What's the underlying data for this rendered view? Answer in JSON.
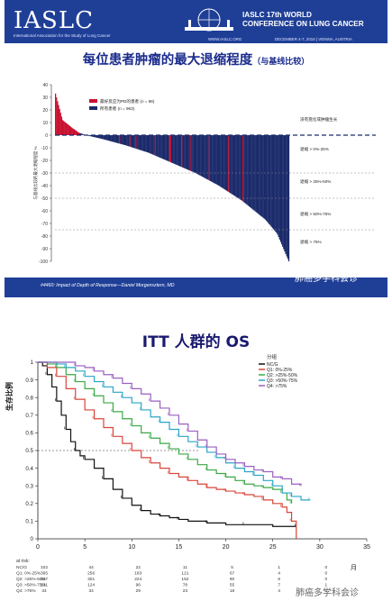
{
  "slide1": {
    "logo": "IASLC",
    "logo_sub": "International Association for the Study of Lung Cancer",
    "conf_line1": "IASLC 17th WORLD",
    "conf_line2": "CONFERENCE ON LUNG CANCER",
    "conf_url": "WWW.IASLC.ORG",
    "conf_dates": "DECEMBER 4-7, 2016 | VIENNA, AUSTRIA",
    "title": "每位患者肿瘤的最大退缩程度",
    "title_suffix": "（与基线比较）",
    "footer": "#4460: Impact of Depth of Response—Daniel Morgensztern, MD",
    "watermark": "肺癌多学科会诊"
  },
  "slide2": {
    "title": "ITT 人群的 OS",
    "watermark": "肺癌多学科会诊"
  },
  "chart_data": [
    {
      "type": "bar",
      "title": "每位患者肿瘤的最大退缩程度（与基线比较）",
      "ylabel": "与基线比较的最大退缩程度 %",
      "ylim": [
        -100,
        40
      ],
      "yticks": [
        40,
        30,
        20,
        10,
        0,
        -10,
        -20,
        -30,
        -40,
        -50,
        -60,
        -70,
        -80,
        -90,
        -100
      ],
      "legend_position": "top-center",
      "series": [
        {
          "name": "最好反应为PD的患者 (n = 96)",
          "color": "#c8102e"
        },
        {
          "name": "所有患者 (n = 963)",
          "color": "#1b2a6b"
        }
      ],
      "shape_points": [
        [
          0,
          33
        ],
        [
          0.03,
          12
        ],
        [
          0.07,
          6
        ],
        [
          0.1,
          2
        ],
        [
          0.13,
          0
        ],
        [
          0.2,
          -3
        ],
        [
          0.3,
          -8
        ],
        [
          0.4,
          -14
        ],
        [
          0.5,
          -22
        ],
        [
          0.6,
          -30
        ],
        [
          0.7,
          -40
        ],
        [
          0.8,
          -52
        ],
        [
          0.9,
          -67
        ],
        [
          0.95,
          -78
        ],
        [
          1,
          -100
        ]
      ],
      "reference_lines": [
        {
          "y": 0,
          "label": "没有变化或肿瘤生长"
        },
        {
          "y": -30,
          "label": "退缩 > 25%-50%"
        },
        {
          "y": -50,
          "label": "退缩 > 50%-75%"
        },
        {
          "y": -75,
          "label": "退缩 > 75%"
        }
      ],
      "zone_labels": [
        "没有变化或肿瘤生长",
        "退缩 > 0%-25%",
        "退缩 > 25%-50%",
        "退缩 > 50%-75%",
        "退缩 > 75%"
      ]
    },
    {
      "type": "line",
      "title": "ITT 人群的 OS",
      "xlabel": "月",
      "ylabel": "生存比例",
      "xlim": [
        0,
        35
      ],
      "ylim": [
        0,
        1
      ],
      "xticks": [
        0,
        5,
        10,
        15,
        20,
        25,
        30,
        35
      ],
      "yticks": [
        0,
        0.1,
        0.2,
        0.3,
        0.4,
        0.5,
        0.6,
        0.7,
        0.8,
        0.9,
        1.0
      ],
      "reference_line": {
        "y": 0.5,
        "style": "dashed"
      },
      "legend_title": "分组",
      "legend_position": "top-right",
      "series": [
        {
          "name": "NC/G",
          "color": "#111111",
          "points": [
            [
              0,
              1
            ],
            [
              0.5,
              0.98
            ],
            [
              1,
              0.93
            ],
            [
              1.5,
              0.86
            ],
            [
              2,
              0.78
            ],
            [
              2.5,
              0.7
            ],
            [
              3,
              0.62
            ],
            [
              3.5,
              0.55
            ],
            [
              4,
              0.5
            ],
            [
              4.5,
              0.47
            ],
            [
              5,
              0.45
            ],
            [
              6,
              0.4
            ],
            [
              7,
              0.34
            ],
            [
              8,
              0.28
            ],
            [
              9,
              0.23
            ],
            [
              10,
              0.19
            ],
            [
              11,
              0.16
            ],
            [
              12,
              0.14
            ],
            [
              13,
              0.13
            ],
            [
              14,
              0.12
            ],
            [
              15,
              0.11
            ],
            [
              16,
              0.1
            ],
            [
              18,
              0.09
            ],
            [
              20,
              0.08
            ],
            [
              22,
              0.08
            ],
            [
              25,
              0.07
            ],
            [
              27.5,
              0.07
            ]
          ]
        },
        {
          "name": "Q1: 0%-25%",
          "color": "#d9453a",
          "points": [
            [
              0,
              1
            ],
            [
              1,
              0.97
            ],
            [
              2,
              0.92
            ],
            [
              3,
              0.85
            ],
            [
              4,
              0.79
            ],
            [
              5,
              0.73
            ],
            [
              6,
              0.68
            ],
            [
              7,
              0.63
            ],
            [
              8,
              0.58
            ],
            [
              9,
              0.54
            ],
            [
              10,
              0.5
            ],
            [
              11,
              0.46
            ],
            [
              12,
              0.43
            ],
            [
              13,
              0.4
            ],
            [
              14,
              0.37
            ],
            [
              15,
              0.35
            ],
            [
              16,
              0.33
            ],
            [
              17,
              0.31
            ],
            [
              18,
              0.29
            ],
            [
              19,
              0.28
            ],
            [
              20,
              0.27
            ],
            [
              21,
              0.26
            ],
            [
              22,
              0.25
            ],
            [
              23,
              0.24
            ],
            [
              24,
              0.22
            ],
            [
              25,
              0.2
            ],
            [
              26,
              0.18
            ],
            [
              26.5,
              0.15
            ],
            [
              27,
              0.1
            ],
            [
              27.5,
              0
            ]
          ]
        },
        {
          "name": "Q2: >25%-50%",
          "color": "#3aa845",
          "points": [
            [
              0,
              1
            ],
            [
              1,
              0.99
            ],
            [
              2,
              0.97
            ],
            [
              3,
              0.93
            ],
            [
              4,
              0.89
            ],
            [
              5,
              0.85
            ],
            [
              6,
              0.81
            ],
            [
              7,
              0.77
            ],
            [
              8,
              0.72
            ],
            [
              9,
              0.68
            ],
            [
              10,
              0.64
            ],
            [
              11,
              0.6
            ],
            [
              12,
              0.57
            ],
            [
              13,
              0.54
            ],
            [
              14,
              0.51
            ],
            [
              15,
              0.48
            ],
            [
              16,
              0.45
            ],
            [
              17,
              0.42
            ],
            [
              18,
              0.39
            ],
            [
              19,
              0.37
            ],
            [
              20,
              0.35
            ],
            [
              21,
              0.33
            ],
            [
              22,
              0.31
            ],
            [
              23,
              0.3
            ],
            [
              24,
              0.29
            ],
            [
              25,
              0.28
            ],
            [
              26,
              0.26
            ],
            [
              26.5,
              0.22
            ],
            [
              27,
              0.2
            ]
          ]
        },
        {
          "name": "Q3: >50%-75%",
          "color": "#2aa5c8",
          "points": [
            [
              0,
              1
            ],
            [
              2,
              0.99
            ],
            [
              3,
              0.97
            ],
            [
              4,
              0.95
            ],
            [
              5,
              0.92
            ],
            [
              6,
              0.89
            ],
            [
              7,
              0.86
            ],
            [
              8,
              0.83
            ],
            [
              9,
              0.8
            ],
            [
              10,
              0.77
            ],
            [
              11,
              0.73
            ],
            [
              12,
              0.69
            ],
            [
              13,
              0.66
            ],
            [
              14,
              0.62
            ],
            [
              15,
              0.58
            ],
            [
              16,
              0.55
            ],
            [
              17,
              0.52
            ],
            [
              18,
              0.49
            ],
            [
              19,
              0.46
            ],
            [
              20,
              0.43
            ],
            [
              21,
              0.4
            ],
            [
              22,
              0.38
            ],
            [
              23,
              0.36
            ],
            [
              24,
              0.33
            ],
            [
              25,
              0.3
            ],
            [
              26,
              0.26
            ],
            [
              27,
              0.24
            ],
            [
              28,
              0.22
            ],
            [
              29,
              0.22
            ]
          ]
        },
        {
          "name": "Q4: >75%",
          "color": "#9b5fc0",
          "points": [
            [
              0,
              1
            ],
            [
              3,
              1
            ],
            [
              4,
              0.98
            ],
            [
              5,
              0.97
            ],
            [
              6,
              0.95
            ],
            [
              7,
              0.93
            ],
            [
              8,
              0.91
            ],
            [
              9,
              0.88
            ],
            [
              10,
              0.85
            ],
            [
              11,
              0.82
            ],
            [
              12,
              0.78
            ],
            [
              13,
              0.74
            ],
            [
              14,
              0.7
            ],
            [
              15,
              0.65
            ],
            [
              16,
              0.61
            ],
            [
              17,
              0.56
            ],
            [
              18,
              0.52
            ],
            [
              19,
              0.48
            ],
            [
              20,
              0.45
            ],
            [
              21,
              0.43
            ],
            [
              22,
              0.41
            ],
            [
              23,
              0.39
            ],
            [
              24,
              0.38
            ],
            [
              25,
              0.35
            ],
            [
              26,
              0.34
            ],
            [
              27,
              0.31
            ],
            [
              28,
              0.3
            ]
          ]
        }
      ],
      "risk_table": {
        "header": "at risk:",
        "rows": [
          {
            "label": "NC/G",
            "values": [
              "102",
              "44",
              "22",
              "11",
              "5",
              "1",
              "0"
            ]
          },
          {
            "label": "Q1: 0%-25%",
            "values": [
              "365",
              "256",
              "183",
              "121",
              "67",
              "4",
              "0"
            ]
          },
          {
            "label": "Q2: >25%-50%",
            "values": [
              "327",
              "301",
              "224",
              "152",
              "90",
              "6",
              "0"
            ]
          },
          {
            "label": "Q3: >50%-75%",
            "values": [
              "131",
              "124",
              "96",
              "78",
              "55",
              "7",
              "1"
            ]
          },
          {
            "label": "Q4: >75%",
            "values": [
              "34",
              "34",
              "29",
              "23",
              "18",
              "4",
              "0"
            ]
          }
        ]
      }
    }
  ]
}
